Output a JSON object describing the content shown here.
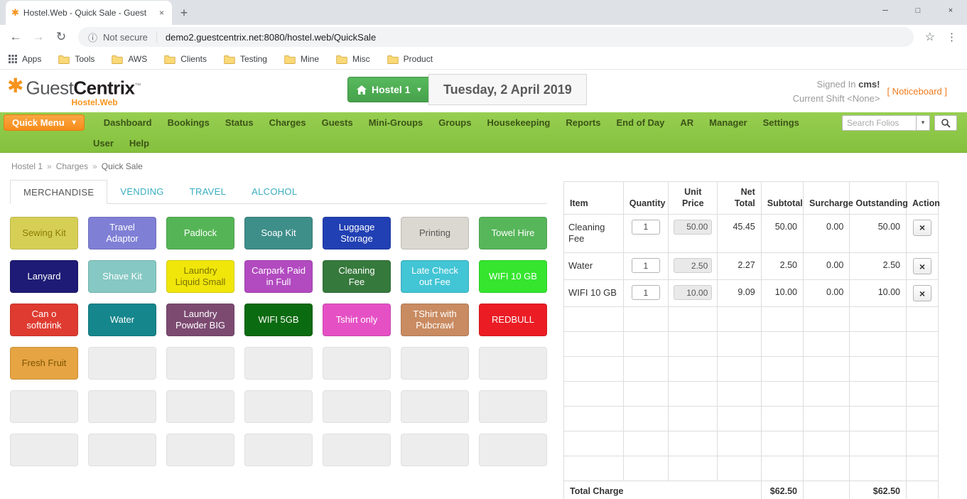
{
  "colors": {
    "accent_orange": "#f7941d",
    "nav_green": "#8dc63f",
    "total_orange": "#ef8b1f",
    "property_green": "#4cab51"
  },
  "browser": {
    "tab_title": "Hostel.Web - Quick Sale - Guest",
    "not_secure": "Not secure",
    "url": "demo2.guestcentrix.net:8080/hostel.web/QuickSale",
    "bookmarks": [
      "Apps",
      "Tools",
      "AWS",
      "Clients",
      "Testing",
      "Mine",
      "Misc",
      "Product"
    ]
  },
  "header": {
    "logo_guest": "Guest",
    "logo_centrix": "Centrix",
    "logo_tm": "™",
    "logo_sub": "Hostel.Web",
    "property": "Hostel 1",
    "date": "Tuesday, 2 April 2019",
    "signed_in": "Signed In",
    "signed_in_user": "cms!",
    "current_shift": "Current Shift <None>",
    "noticeboard": "[ Noticeboard ]"
  },
  "nav": {
    "quick_menu": "Quick Menu",
    "row1": [
      "Dashboard",
      "Bookings",
      "Status",
      "Charges",
      "Guests",
      "Mini-Groups",
      "Groups",
      "Housekeeping",
      "Reports",
      "End of Day",
      "AR",
      "Manager",
      "Settings"
    ],
    "row2": [
      "User",
      "Help"
    ],
    "search_placeholder": "Search Folios"
  },
  "breadcrumb": [
    "Hostel 1",
    "Charges",
    "Quick Sale"
  ],
  "category_tabs": [
    {
      "label": "MERCHANDISE",
      "active": true
    },
    {
      "label": "VENDING",
      "active": false
    },
    {
      "label": "TRAVEL",
      "active": false
    },
    {
      "label": "ALCOHOL",
      "active": false
    }
  ],
  "products": [
    {
      "label": "Sewing Kit",
      "bg": "#d6cf56",
      "fg": "#8a7d00"
    },
    {
      "label": "Travel Adaptor",
      "bg": "#7f7fd6",
      "fg": "#ffffff"
    },
    {
      "label": "Padlock",
      "bg": "#55b556",
      "fg": "#ffffff"
    },
    {
      "label": "Soap Kit",
      "bg": "#3e8e8a",
      "fg": "#ffffff"
    },
    {
      "label": "Luggage Storage",
      "bg": "#2140b3",
      "fg": "#ffffff"
    },
    {
      "label": "Printing",
      "bg": "#dad8d0",
      "fg": "#555555"
    },
    {
      "label": "Towel Hire",
      "bg": "#57b65a",
      "fg": "#ffffff"
    },
    {
      "label": "Lanyard",
      "bg": "#1d1b75",
      "fg": "#ffffff"
    },
    {
      "label": "Shave Kit",
      "bg": "#86c8c3",
      "fg": "#ffffff"
    },
    {
      "label": "Laundry Liquid Small",
      "bg": "#f0e60a",
      "fg": "#7b7200"
    },
    {
      "label": "Carpark Paid in Full",
      "bg": "#b24ac0",
      "fg": "#ffffff"
    },
    {
      "label": "Cleaning Fee",
      "bg": "#36793c",
      "fg": "#ffffff"
    },
    {
      "label": "Late Check out Fee",
      "bg": "#42c5d5",
      "fg": "#ffffff"
    },
    {
      "label": "WIFI 10 GB",
      "bg": "#35e52e",
      "fg": "#ffffff"
    },
    {
      "label": "Can o softdrink",
      "bg": "#df3b30",
      "fg": "#ffffff"
    },
    {
      "label": "Water",
      "bg": "#15868c",
      "fg": "#ffffff"
    },
    {
      "label": "Laundry Powder BIG",
      "bg": "#7c4a71",
      "fg": "#ffffff"
    },
    {
      "label": "WIFI 5GB",
      "bg": "#0b6b10",
      "fg": "#ffffff"
    },
    {
      "label": "Tshirt only",
      "bg": "#e551c5",
      "fg": "#ffffff"
    },
    {
      "label": "TShirt with Pubcrawl",
      "bg": "#c98b61",
      "fg": "#ffffff"
    },
    {
      "label": "REDBULL",
      "bg": "#eb1c24",
      "fg": "#ffffff"
    },
    {
      "label": "Fresh Fruit",
      "bg": "#e6a443",
      "fg": "#7c5500"
    }
  ],
  "empty_product_slots": 20,
  "cart": {
    "columns": [
      "Item",
      "Quantity",
      "Unit Price",
      "Net Total",
      "Subtotal",
      "Surcharge",
      "Outstanding",
      "Action"
    ],
    "rows": [
      {
        "item": "Cleaning Fee",
        "quantity": "1",
        "unit_price": "50.00",
        "net_total": "45.45",
        "subtotal": "50.00",
        "surcharge": "0.00",
        "outstanding": "50.00"
      },
      {
        "item": "Water",
        "quantity": "1",
        "unit_price": "2.50",
        "net_total": "2.27",
        "subtotal": "2.50",
        "surcharge": "0.00",
        "outstanding": "2.50"
      },
      {
        "item": "WIFI 10 GB",
        "quantity": "1",
        "unit_price": "10.00",
        "net_total": "9.09",
        "subtotal": "10.00",
        "surcharge": "0.00",
        "outstanding": "10.00"
      }
    ],
    "empty_rows": 7,
    "total_label": "Total Charge",
    "total_subtotal": "$62.50",
    "total_outstanding": "$62.50"
  }
}
